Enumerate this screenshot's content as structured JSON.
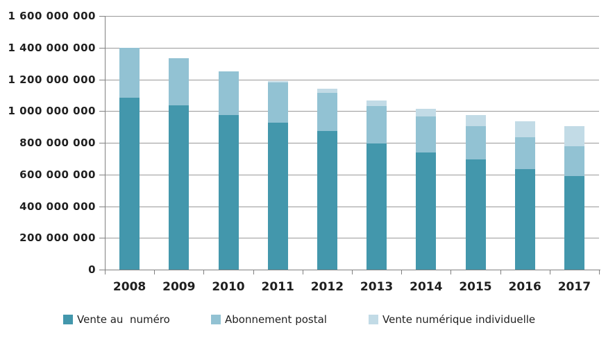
{
  "chart_data": {
    "type": "bar",
    "stacked": true,
    "title": "",
    "xlabel": "",
    "ylabel": "",
    "categories": [
      "2008",
      "2009",
      "2010",
      "2011",
      "2012",
      "2013",
      "2014",
      "2015",
      "2016",
      "2017"
    ],
    "series": [
      {
        "name": "Vente au  numéro",
        "key": "vente-au-numero",
        "color": "#4397AC",
        "values": [
          1085000000,
          1035000000,
          975000000,
          925000000,
          875000000,
          795000000,
          740000000,
          695000000,
          635000000,
          590000000
        ]
      },
      {
        "name": "Abonnement postal",
        "key": "abonnement-postal",
        "color": "#92C2D3",
        "values": [
          315000000,
          300000000,
          275000000,
          255000000,
          240000000,
          235000000,
          225000000,
          210000000,
          200000000,
          190000000
        ]
      },
      {
        "name": "Vente numérique individuelle",
        "key": "vente-numerique-individuelle",
        "color": "#C2DBE6",
        "values": [
          0,
          0,
          0,
          10000000,
          25000000,
          35000000,
          50000000,
          70000000,
          100000000,
          125000000
        ]
      }
    ],
    "totals": [
      1400000000,
      1335000000,
      1250000000,
      1190000000,
      1140000000,
      1065000000,
      1015000000,
      975000000,
      935000000,
      905000000
    ],
    "ylim": [
      0,
      1600000000
    ],
    "y_tick_step": 200000000,
    "y_tick_labels": [
      "0",
      "200 000 000",
      "400 000 000",
      "600 000 000",
      "800 000 000",
      "1 000 000 000",
      "1 200 000 000",
      "1 400 000 000",
      "1 600 000 000"
    ],
    "grid": true,
    "legend_position": "bottom",
    "colors": {
      "grid": "#999999",
      "axis": "#808080",
      "text": "#1F1F1F",
      "background": "#FFFFFF"
    }
  }
}
